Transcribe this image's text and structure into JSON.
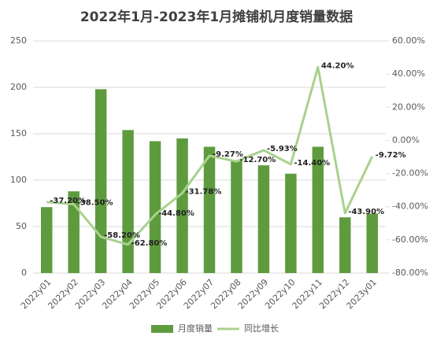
{
  "chart_data": {
    "type": "bar-line",
    "title": "2022年1月-2023年1月摊铺机月度销量数据",
    "categories": [
      "2022y01",
      "2022y02",
      "2022y03",
      "2022y04",
      "2022y05",
      "2022y06",
      "2022y07",
      "2022y08",
      "2022y09",
      "2022y10",
      "2022y11",
      "2022y12",
      "2023y01"
    ],
    "series": [
      {
        "name": "月度销量",
        "color": "#5e9b3e",
        "type": "bar",
        "values": [
          71,
          88,
          198,
          154,
          142,
          145,
          136,
          121,
          116,
          107,
          136,
          60,
          64
        ]
      },
      {
        "name": "同比增长",
        "color": "#a9d18e",
        "type": "line",
        "axis": "y2",
        "values": [
          -37.2,
          -38.5,
          -58.2,
          -62.8,
          -44.8,
          -31.78,
          -9.27,
          -12.7,
          -5.93,
          -14.4,
          44.2,
          -43.9,
          -9.72
        ],
        "value_labels": [
          "-37.20%",
          "-38.50%",
          "-58.20%",
          "-62.80%",
          "-44.80%",
          "-31.78%",
          "-9.27%",
          "-12.70%",
          "-5.93%",
          "-14.40%",
          "44.20%",
          "-43.90%",
          "-9.72%"
        ]
      }
    ],
    "ylim": [
      0,
      250
    ],
    "yticks": [
      0,
      50,
      100,
      150,
      200,
      250
    ],
    "y2lim": [
      -80,
      60
    ],
    "y2ticks": [
      {
        "value": -80,
        "label": "-80.00%"
      },
      {
        "value": -60,
        "label": "-60.00%"
      },
      {
        "value": -40,
        "label": "-40.00%"
      },
      {
        "value": -20,
        "label": "-20.00%"
      },
      {
        "value": 0,
        "label": "0.00%"
      },
      {
        "value": 20,
        "label": "20.00%"
      },
      {
        "value": 40,
        "label": "40.00%"
      },
      {
        "value": 60,
        "label": "60.00%"
      }
    ],
    "grid": true,
    "legend": "bottom"
  }
}
